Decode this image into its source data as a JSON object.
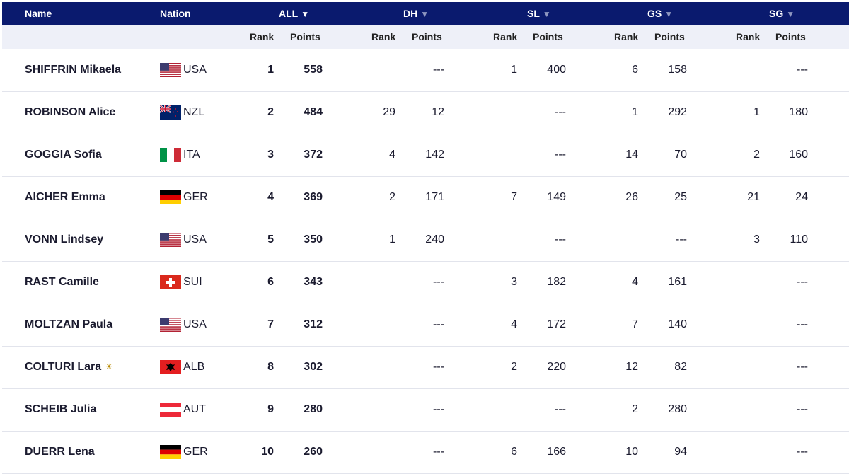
{
  "headers": {
    "name": "Name",
    "nation": "Nation",
    "all": "ALL",
    "dh": "DH",
    "sl": "SL",
    "gs": "GS",
    "sg": "SG",
    "rank": "Rank",
    "points": "Points",
    "sort_arrow": "▼"
  },
  "rows": [
    {
      "name": "SHIFFRIN Mikaela",
      "nation": "USA",
      "flag": "usa-flag-icon",
      "rank": "1",
      "points": "558",
      "dh_rank": "",
      "dh_points": "---",
      "sl_rank": "1",
      "sl_points": "400",
      "gs_rank": "6",
      "gs_points": "158",
      "sg_rank": "",
      "sg_points": "---"
    },
    {
      "name": "ROBINSON Alice",
      "nation": "NZL",
      "flag": "nzl-flag-icon",
      "rank": "2",
      "points": "484",
      "dh_rank": "29",
      "dh_points": "12",
      "sl_rank": "",
      "sl_points": "---",
      "gs_rank": "1",
      "gs_points": "292",
      "sg_rank": "1",
      "sg_points": "180"
    },
    {
      "name": "GOGGIA Sofia",
      "nation": "ITA",
      "flag": "ita-flag-icon",
      "rank": "3",
      "points": "372",
      "dh_rank": "4",
      "dh_points": "142",
      "sl_rank": "",
      "sl_points": "---",
      "gs_rank": "14",
      "gs_points": "70",
      "sg_rank": "2",
      "sg_points": "160"
    },
    {
      "name": "AICHER Emma",
      "nation": "GER",
      "flag": "ger-flag-icon",
      "rank": "4",
      "points": "369",
      "dh_rank": "2",
      "dh_points": "171",
      "sl_rank": "7",
      "sl_points": "149",
      "gs_rank": "26",
      "gs_points": "25",
      "sg_rank": "21",
      "sg_points": "24"
    },
    {
      "name": "VONN Lindsey",
      "nation": "USA",
      "flag": "usa-flag-icon",
      "rank": "5",
      "points": "350",
      "dh_rank": "1",
      "dh_points": "240",
      "sl_rank": "",
      "sl_points": "---",
      "gs_rank": "",
      "gs_points": "---",
      "sg_rank": "3",
      "sg_points": "110"
    },
    {
      "name": "RAST Camille",
      "nation": "SUI",
      "flag": "sui-flag-icon",
      "rank": "6",
      "points": "343",
      "dh_rank": "",
      "dh_points": "---",
      "sl_rank": "3",
      "sl_points": "182",
      "gs_rank": "4",
      "gs_points": "161",
      "sg_rank": "",
      "sg_points": "---"
    },
    {
      "name": "MOLTZAN Paula",
      "nation": "USA",
      "flag": "usa-flag-icon",
      "rank": "7",
      "points": "312",
      "dh_rank": "",
      "dh_points": "---",
      "sl_rank": "4",
      "sl_points": "172",
      "gs_rank": "7",
      "gs_points": "140",
      "sg_rank": "",
      "sg_points": "---"
    },
    {
      "name": "COLTURI Lara",
      "nation": "ALB",
      "flag": "alb-flag-icon",
      "badge": "sun-badge-icon",
      "rank": "8",
      "points": "302",
      "dh_rank": "",
      "dh_points": "---",
      "sl_rank": "2",
      "sl_points": "220",
      "gs_rank": "12",
      "gs_points": "82",
      "sg_rank": "",
      "sg_points": "---"
    },
    {
      "name": "SCHEIB Julia",
      "nation": "AUT",
      "flag": "aut-flag-icon",
      "rank": "9",
      "points": "280",
      "dh_rank": "",
      "dh_points": "---",
      "sl_rank": "",
      "sl_points": "---",
      "gs_rank": "2",
      "gs_points": "280",
      "sg_rank": "",
      "sg_points": "---"
    },
    {
      "name": "DUERR Lena",
      "nation": "GER",
      "flag": "ger-flag-icon",
      "rank": "10",
      "points": "260",
      "dh_rank": "",
      "dh_points": "---",
      "sl_rank": "6",
      "sl_points": "166",
      "gs_rank": "10",
      "gs_points": "94",
      "sg_rank": "",
      "sg_points": "---"
    }
  ],
  "colors": {
    "header_bg": "#0a1a6e",
    "subheader_bg": "#eef0f8",
    "row_border": "#e2e4ec"
  }
}
